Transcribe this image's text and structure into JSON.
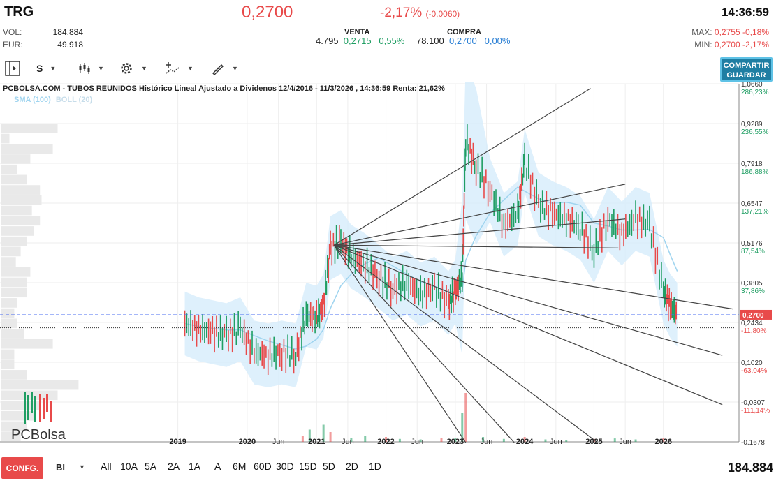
{
  "header": {
    "ticker": "TRG",
    "price": "0,2700",
    "change_pct": "-2,17%",
    "change_abs": "(-0,0060)",
    "time": "14:36:59",
    "vol_label": "VOL:",
    "vol_value": "184.884",
    "eur_label": "EUR:",
    "eur_value": "49.918",
    "sell": {
      "title": "VENTA",
      "qty": "4.795",
      "price": "0,2715",
      "pct": "0,55%"
    },
    "buy": {
      "title": "COMPRA",
      "qty": "78.100",
      "price": "0,2700",
      "pct": "0,00%"
    },
    "max_label": "MAX:",
    "max_price": "0,2755",
    "max_pct": "-0,18%",
    "min_label": "MIN:",
    "min_price": "0,2700",
    "min_pct": "-2,17%"
  },
  "toolbar": {
    "series_label": "S",
    "share_line1": "COMPARTIR",
    "share_line2": "GUARDAR",
    "icons": [
      "panel-toggle-icon",
      "series-type-icon",
      "candlestick-icon",
      "settings-gear-icon",
      "drawing-tools-icon",
      "pencil-ruler-icon"
    ]
  },
  "chart": {
    "title": "PCBOLSA.COM - TUBOS REUNIDOS Histórico Lineal Ajustado a Dividenos 12/4/2016 - 11/3/2026 , 14:36:59 Renta: 21,62%",
    "legend_sma": "SMA (100)",
    "legend_boll": "BOLL (20)",
    "current_price_label": "0,2700",
    "brand": "PCBolsa",
    "colors": {
      "up": "#1f9e63",
      "down": "#e84a4a",
      "band": "#d6ecfb",
      "current_line": "#4a6cf0",
      "price_box": "#e84a4a"
    }
  },
  "chart_data": {
    "type": "line",
    "y_ticks": [
      {
        "price": "1,0660",
        "pct": "286,23%"
      },
      {
        "price": "0,9289",
        "pct": "236,55%"
      },
      {
        "price": "0,7918",
        "pct": "186,88%"
      },
      {
        "price": "0,6547",
        "pct": "137,21%"
      },
      {
        "price": "0,5176",
        "pct": "87,54%"
      },
      {
        "price": "0,3805",
        "pct": "37,86%"
      },
      {
        "price": "0,2434",
        "pct": "-11,80%"
      },
      {
        "price": "0,1020",
        "pct": "-63,04%"
      },
      {
        "price": "-0,0307",
        "pct": "-111,14%"
      },
      {
        "price": "-0,1678",
        "pct": ""
      }
    ],
    "ylim": [
      -0.1678,
      1.066
    ],
    "x_labels": [
      "2019",
      "2020",
      "Jun",
      "2021",
      "Jun",
      "2022",
      "Jun",
      "2023",
      "Jun",
      "2024",
      "Jun",
      "2025",
      "Jun",
      "2026"
    ],
    "x_label_dates": [
      2019.0,
      2020.0,
      2020.45,
      2021.0,
      2021.45,
      2022.0,
      2022.45,
      2023.0,
      2023.45,
      2024.0,
      2024.45,
      2025.0,
      2025.45,
      2026.0
    ],
    "xlim": [
      2018.45,
      2027.1
    ],
    "series": [
      {
        "x": [
          2019.1,
          2019.3,
          2019.5,
          2019.7,
          2019.9,
          2020.1,
          2020.3,
          2020.5,
          2020.7,
          2020.85,
          2021.0,
          2021.1,
          2021.2,
          2021.35,
          2021.5,
          2021.7,
          2021.9,
          2022.1,
          2022.3,
          2022.5,
          2022.7,
          2022.9,
          2023.0,
          2023.1,
          2023.15,
          2023.3,
          2023.5,
          2023.7,
          2023.9,
          2024.0,
          2024.2,
          2024.4,
          2024.6,
          2024.8,
          2025.0,
          2025.2,
          2025.4,
          2025.6,
          2025.8,
          2026.0,
          2026.1,
          2026.2
        ],
        "y": [
          0.24,
          0.22,
          0.21,
          0.2,
          0.22,
          0.14,
          0.13,
          0.14,
          0.13,
          0.27,
          0.26,
          0.3,
          0.5,
          0.52,
          0.47,
          0.44,
          0.4,
          0.36,
          0.38,
          0.34,
          0.36,
          0.31,
          0.35,
          0.4,
          0.87,
          0.78,
          0.7,
          0.58,
          0.62,
          0.8,
          0.65,
          0.62,
          0.6,
          0.57,
          0.49,
          0.6,
          0.55,
          0.6,
          0.58,
          0.35,
          0.3,
          0.27
        ]
      }
    ],
    "volume": {
      "x": [
        2020.8,
        2020.9,
        2021.1,
        2021.2,
        2021.5,
        2021.7,
        2022.0,
        2022.2,
        2022.5,
        2022.8,
        2023.0,
        2023.1,
        2023.15,
        2023.4,
        2023.7,
        2024.0,
        2024.3,
        2024.6,
        2025.0,
        2025.3,
        2025.6,
        2026.0
      ],
      "y": [
        0.12,
        0.25,
        0.35,
        0.2,
        0.08,
        0.12,
        0.1,
        0.06,
        0.05,
        0.08,
        0.08,
        0.6,
        1.0,
        0.1,
        0.06,
        0.1,
        0.05,
        0.04,
        0.06,
        0.07,
        0.05,
        0.08
      ]
    },
    "fan_lines": {
      "origin": [
        2021.25,
        0.51
      ],
      "ends": [
        [
          2024.95,
          1.05
        ],
        [
          2025.45,
          0.72
        ],
        [
          2025.45,
          0.6
        ],
        [
          2025.35,
          0.5
        ],
        [
          2027.0,
          0.29
        ],
        [
          2026.85,
          0.13
        ],
        [
          2026.85,
          -0.04
        ],
        [
          2025.05,
          -0.17
        ],
        [
          2023.85,
          -0.17
        ],
        [
          2023.15,
          -0.17
        ]
      ]
    },
    "volume_profile": [
      0.35,
      0.05,
      0.32,
      0.18,
      0.1,
      0.16,
      0.24,
      0.25,
      0.19,
      0.24,
      0.2,
      0.16,
      0.12,
      0.09,
      0.18,
      0.16,
      0.16,
      0.1,
      0.08,
      0.1,
      0.14,
      0.32,
      0.08,
      0.08,
      0.16,
      0.48,
      0.35,
      0.24,
      0.2,
      0.16,
      0.12
    ],
    "current_price": 0.27,
    "grid": true
  },
  "bottom": {
    "config_label": "CONFG.",
    "bi_label": "BI",
    "ranges": [
      "All",
      "10A",
      "5A",
      "2A",
      "1A",
      "A",
      "6M",
      "60D",
      "30D",
      "15D",
      "5D",
      "2D",
      "1D"
    ],
    "volume_total": "184.884"
  }
}
